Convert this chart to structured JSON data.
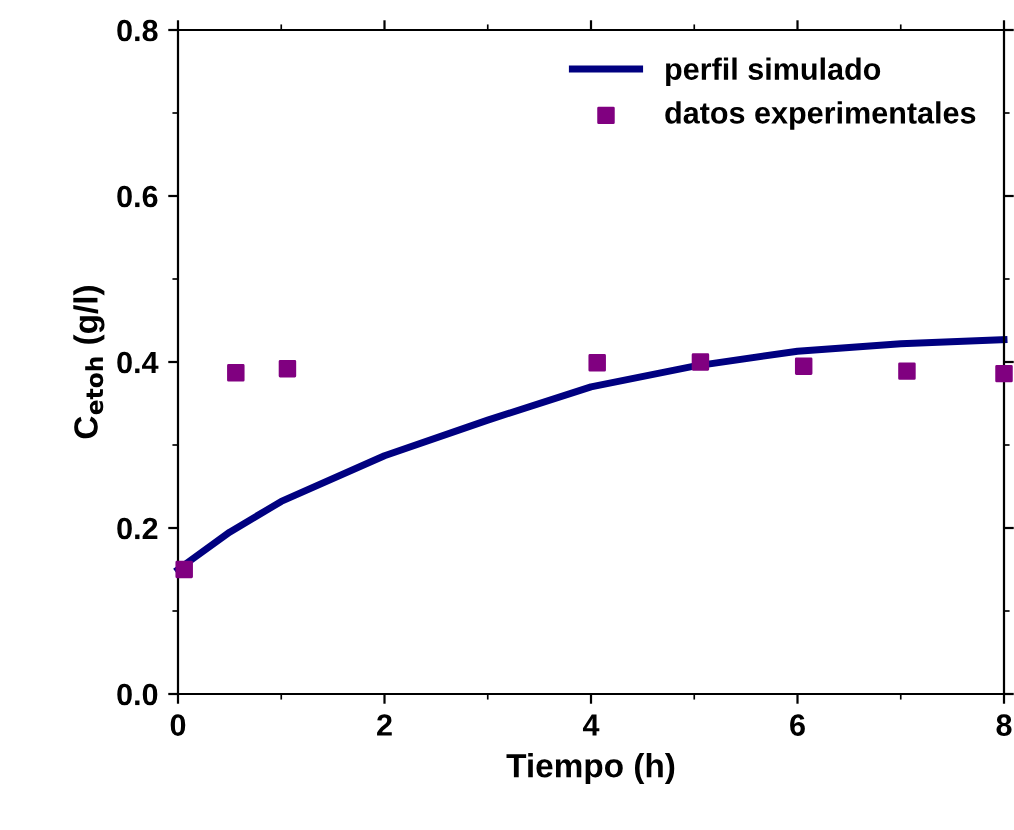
{
  "chart_data": {
    "type": "line",
    "xlabel": "Tiempo (h)",
    "ylabel": "C$_{etoh}$ (g/l)",
    "xlim": [
      0,
      8
    ],
    "xticks": [
      0,
      2,
      4,
      6,
      8
    ],
    "ylim": [
      0,
      0.8
    ],
    "yticks": [
      {
        "value": 0,
        "label": "0.0"
      },
      0.2,
      0.4,
      0.6,
      0.8
    ],
    "grid": false,
    "legend": "top right",
    "series": [
      {
        "name": "perfil simulado",
        "color": "#000080",
        "line_style": "solid",
        "marker": "none",
        "x": [
          0,
          0.5,
          1,
          2,
          3,
          4,
          5,
          6,
          7,
          8
        ],
        "values": [
          0.15,
          0.195,
          0.232,
          0.287,
          0.33,
          0.37,
          0.395,
          0.413,
          0.422,
          0.427
        ]
      },
      {
        "name": "datos experimentales",
        "type": "scatter",
        "color": "#800080",
        "marker": "square",
        "x": [
          0.06,
          0.56,
          1.06,
          4.06,
          5.06,
          6.06,
          7.06,
          8.0
        ],
        "values": [
          0.15,
          0.387,
          0.392,
          0.399,
          0.4,
          0.395,
          0.389,
          0.386
        ]
      }
    ]
  }
}
